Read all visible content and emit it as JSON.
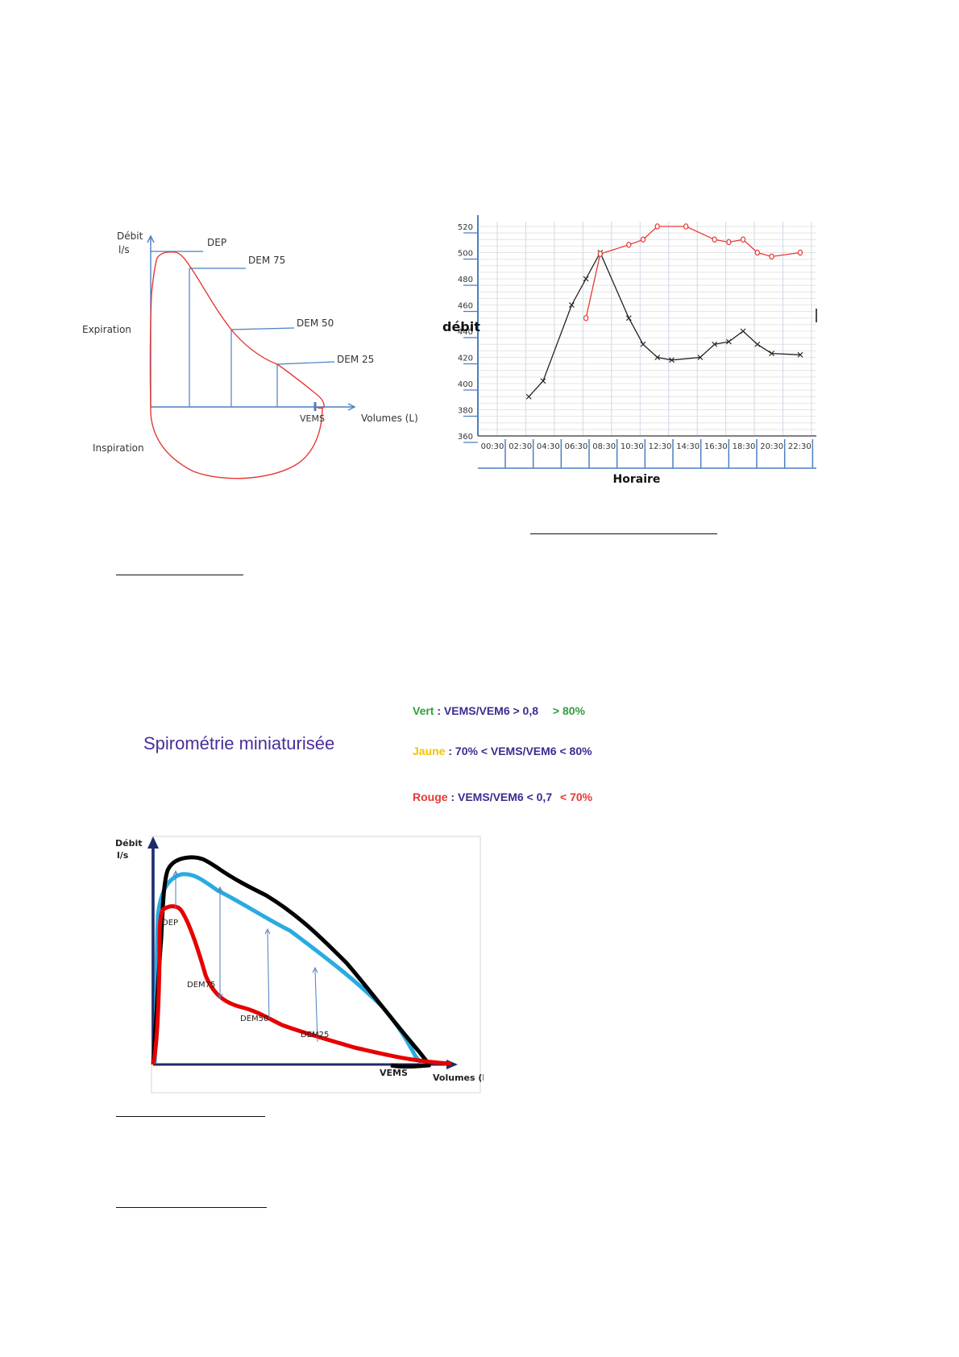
{
  "flow_volume_diagram": {
    "y_axis_label": [
      "Débit",
      "l/s"
    ],
    "x_axis_label": "Volumes (L)",
    "expiration_label": "Expiration",
    "inspiration_label": "Inspiration",
    "markers": [
      "DEP",
      "DEM 75",
      "DEM 50",
      "DEM 25"
    ],
    "vems_label": "VEMS",
    "colors": {
      "curve": "#e53935",
      "axes": "#4a7fc1"
    }
  },
  "chart_data": [
    {
      "type": "line",
      "title": "",
      "xlabel": "Horaire",
      "ylabel": "débit",
      "ylim": [
        360,
        520
      ],
      "yticks": [
        360,
        380,
        400,
        420,
        440,
        460,
        480,
        500,
        520
      ],
      "categories": [
        "00:30",
        "02:30",
        "04:30",
        "06:30",
        "08:30",
        "10:30",
        "12:30",
        "14:30",
        "16:30",
        "18:30",
        "20:30",
        "22:30"
      ],
      "grid": true,
      "series": [
        {
          "marker": "x",
          "color": "#222222",
          "points": [
            [
              "03:30",
              390
            ],
            [
              "04:30",
              402
            ],
            [
              "06:30",
              460
            ],
            [
              "07:30",
              480
            ],
            [
              "08:30",
              500
            ],
            [
              "10:30",
              450
            ],
            [
              "11:30",
              430
            ],
            [
              "12:30",
              420
            ],
            [
              "13:30",
              418
            ],
            [
              "15:30",
              420
            ],
            [
              "16:30",
              430
            ],
            [
              "17:30",
              432
            ],
            [
              "18:30",
              440
            ],
            [
              "19:30",
              430
            ],
            [
              "20:30",
              423
            ],
            [
              "22:30",
              422
            ]
          ]
        },
        {
          "marker": "o",
          "color": "#e53935",
          "points": [
            [
              "07:30",
              450
            ],
            [
              "08:30",
              499
            ],
            [
              "10:30",
              506
            ],
            [
              "11:30",
              510
            ],
            [
              "12:30",
              520
            ],
            [
              "14:30",
              520
            ],
            [
              "16:30",
              510
            ],
            [
              "17:30",
              508
            ],
            [
              "18:30",
              510
            ],
            [
              "19:30",
              500
            ],
            [
              "20:30",
              497
            ],
            [
              "22:30",
              500
            ]
          ]
        }
      ]
    }
  ],
  "spirometry": {
    "title": "Spirométrie miniaturisée",
    "legend": [
      {
        "name": "Vert",
        "desc": " : VEMS/VEM6 > 0,8",
        "pct": "> 80%",
        "color": "#2e9e3a"
      },
      {
        "name": "Jaune",
        "desc": " : 70% < VEMS/VEM6 < 80%",
        "pct": "",
        "color": "#f2c400"
      },
      {
        "name": "Rouge",
        "desc": " : VEMS/VEM6 < 0,7",
        "pct": "< 70%",
        "color": "#e53935"
      }
    ],
    "y_axis_label": [
      "Débit",
      "l/s"
    ],
    "x_axis_label": "Volumes (L",
    "vems_label": "VEMS",
    "markers": [
      "DEP",
      "DEM75",
      "DEM50",
      "DEM25"
    ],
    "colors": {
      "black": "#000000",
      "blue": "#29abe2",
      "red": "#e60000",
      "axes": "#1f2a6b"
    }
  }
}
